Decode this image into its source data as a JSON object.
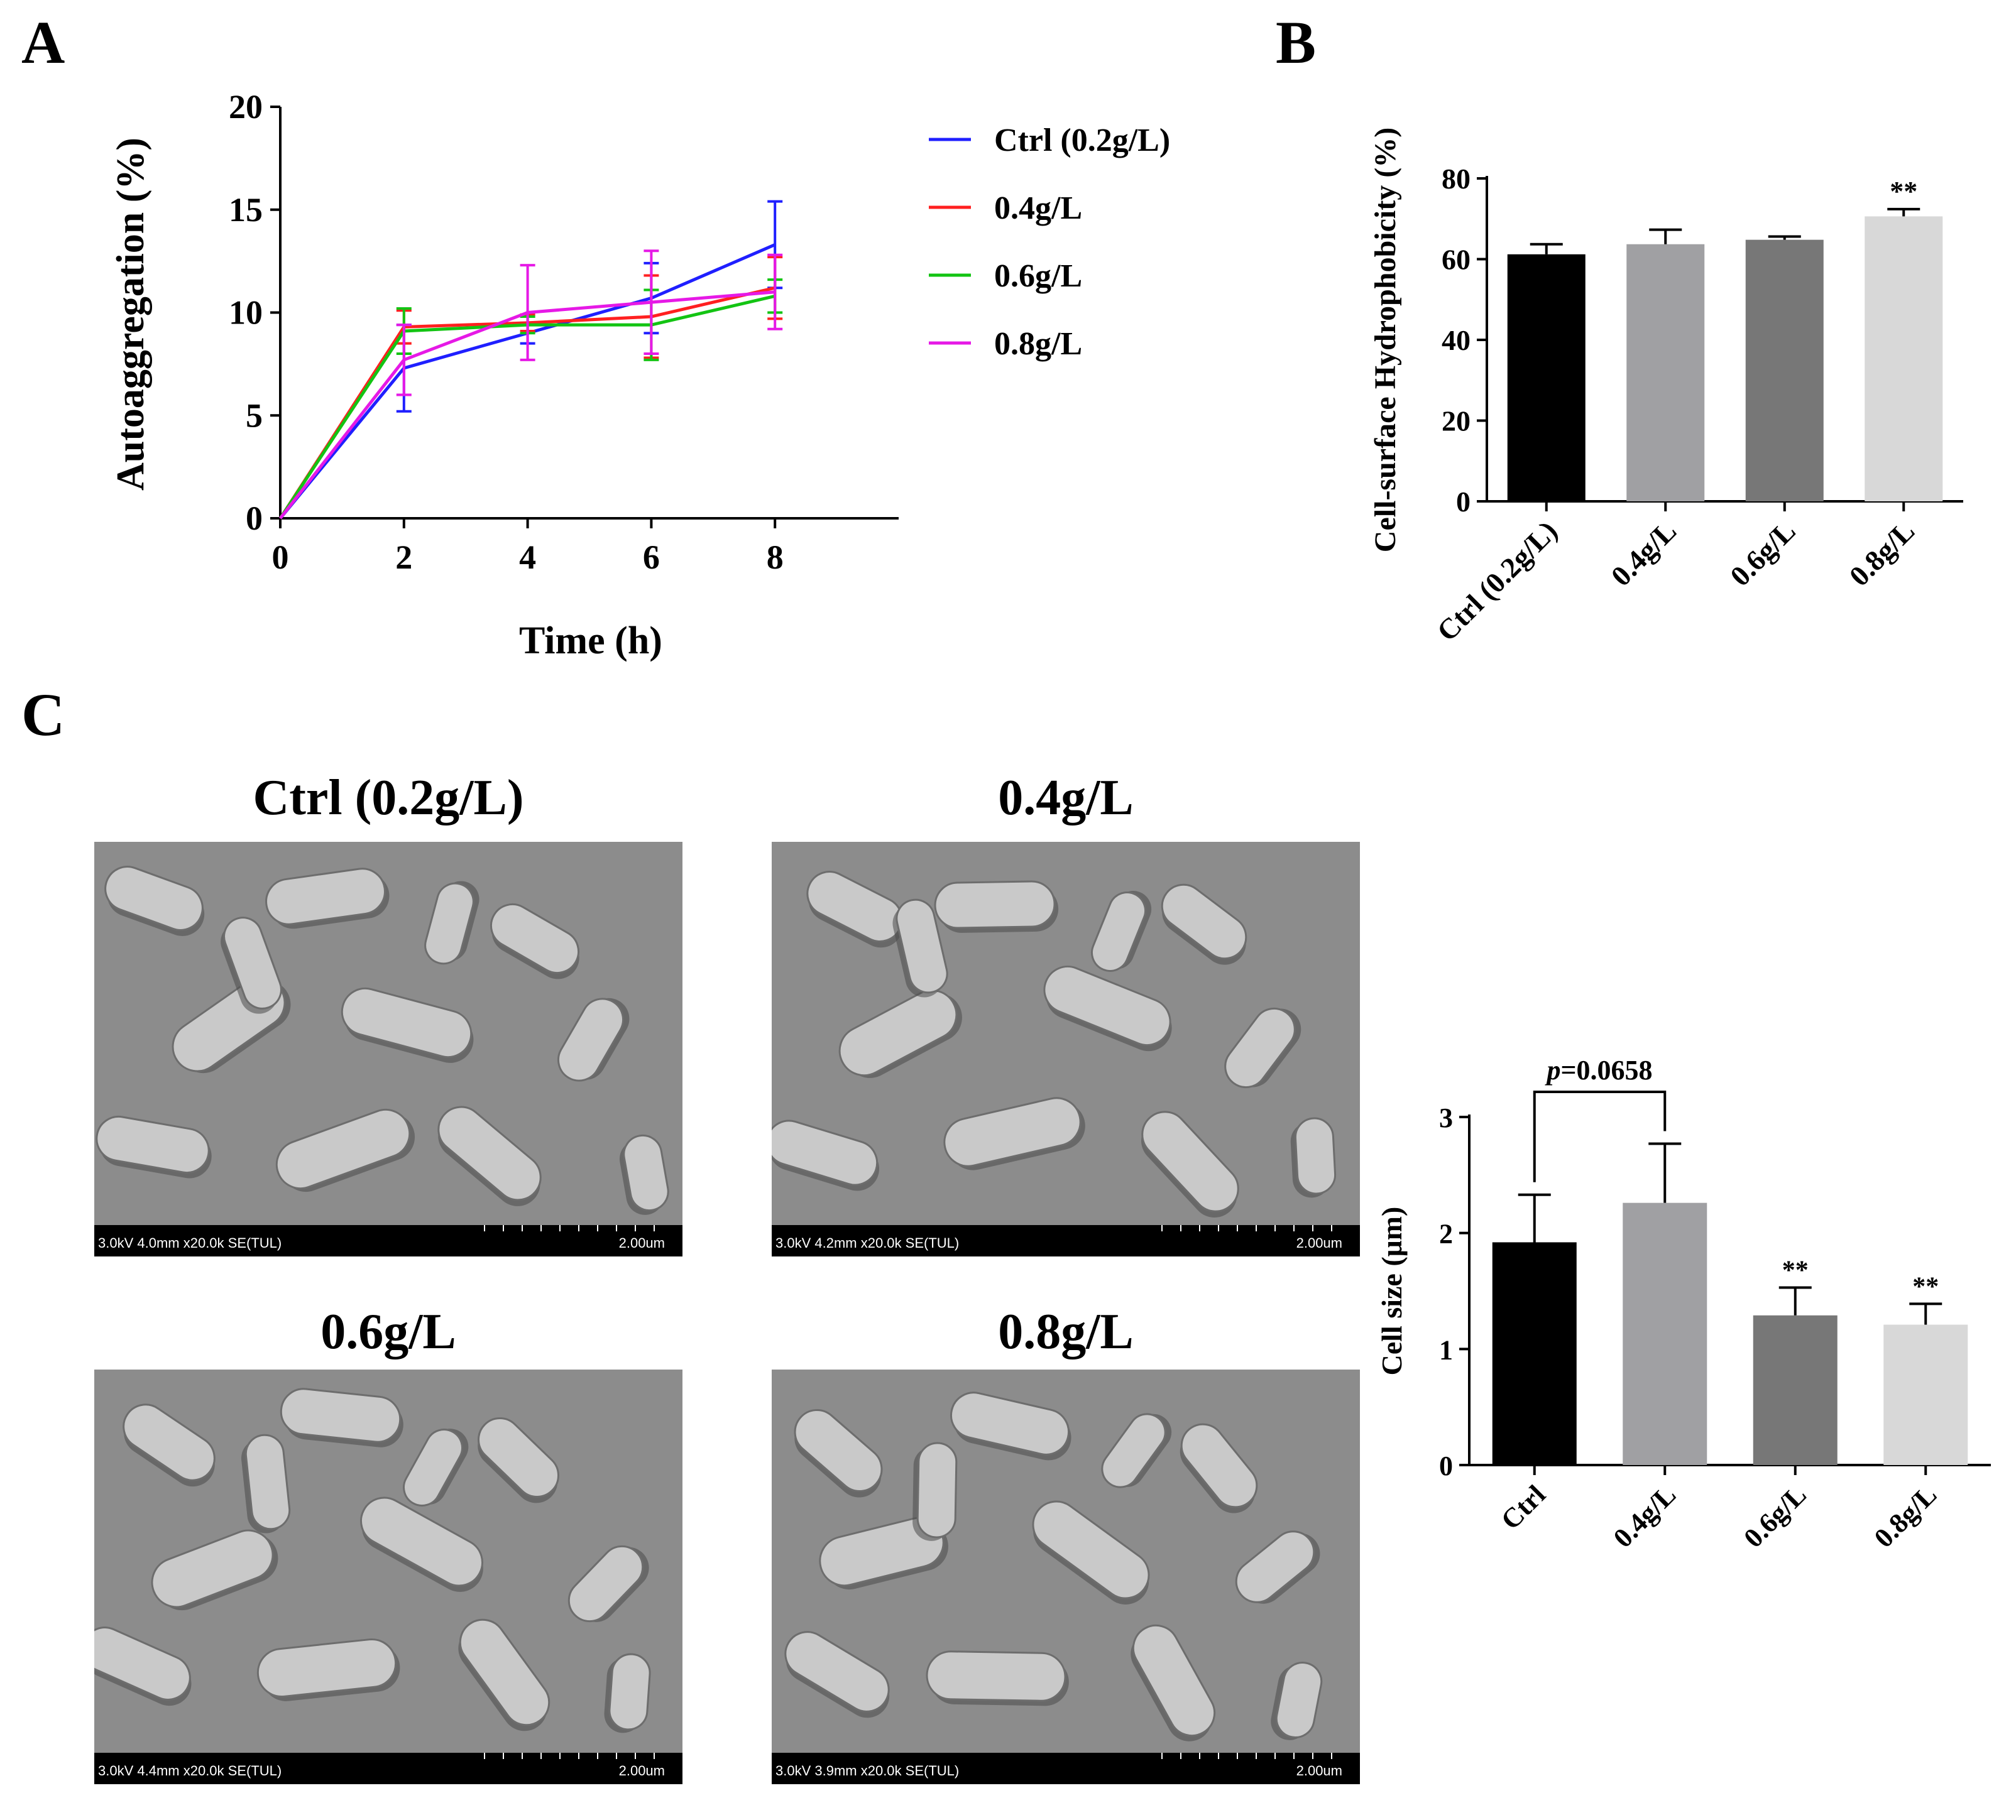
{
  "panels": {
    "a": "A",
    "b": "B",
    "c": "C"
  },
  "chart_data": [
    {
      "type": "line",
      "panel": "A",
      "title": "",
      "xlabel": "Time (h)",
      "ylabel": "Autoaggregation (%)",
      "x": [
        0,
        2,
        4,
        6,
        8
      ],
      "xticks": [
        "0",
        "2",
        "4",
        "6",
        "8"
      ],
      "yticks": [
        "0",
        "5",
        "10",
        "15",
        "20"
      ],
      "xlim": [
        0,
        10
      ],
      "ylim": [
        0,
        20
      ],
      "legend_position": "right",
      "series": [
        {
          "name": "Ctrl (0.2g/L)",
          "color": "#1f1fff",
          "values": [
            0,
            7.3,
            9.0,
            10.7,
            13.3
          ],
          "errors": [
            0,
            2.1,
            0.5,
            1.7,
            2.1
          ]
        },
        {
          "name": "0.4g/L",
          "color": "#ff2020",
          "values": [
            0,
            9.3,
            9.5,
            9.8,
            11.2
          ],
          "errors": [
            0,
            0.8,
            0.4,
            2.0,
            1.5
          ]
        },
        {
          "name": "0.6g/L",
          "color": "#13c413",
          "values": [
            0,
            9.1,
            9.4,
            9.4,
            10.8
          ],
          "errors": [
            0,
            1.1,
            0.4,
            1.7,
            0.8
          ]
        },
        {
          "name": "0.8g/L",
          "color": "#e619e6",
          "values": [
            0,
            7.7,
            10.0,
            10.5,
            11.0
          ],
          "errors": [
            0,
            1.7,
            2.3,
            2.5,
            1.8
          ]
        }
      ]
    },
    {
      "type": "bar",
      "panel": "B",
      "title": "",
      "xlabel": "",
      "ylabel": "Cell-surface Hydrophobicity (%)",
      "categories": [
        "Ctrl (0.2g/L)",
        "0.4g/L",
        "0.6g/L",
        "0.8g/L"
      ],
      "values": [
        61.2,
        63.7,
        64.8,
        70.6
      ],
      "errors": [
        2.5,
        3.6,
        0.8,
        1.8
      ],
      "colors": [
        "#000000",
        "#a0a0a3",
        "#777777",
        "#d8d8d8"
      ],
      "annotations": [
        "",
        "",
        "",
        "**"
      ],
      "yticks": [
        "0",
        "20",
        "40",
        "60",
        "80"
      ],
      "ylim": [
        0,
        80
      ]
    },
    {
      "type": "bar",
      "panel": "C",
      "title": "",
      "xlabel": "",
      "ylabel": "Cell size (μm)",
      "categories": [
        "Ctrl",
        "0.4g/L",
        "0.6g/L",
        "0.8g/L"
      ],
      "values": [
        1.92,
        2.26,
        1.29,
        1.21
      ],
      "errors": [
        0.41,
        0.51,
        0.24,
        0.18
      ],
      "colors": [
        "#000000",
        "#a0a0a3",
        "#777777",
        "#d8d8d8"
      ],
      "annotations": [
        "",
        "",
        "**",
        "**"
      ],
      "bracket": {
        "from": 0,
        "to": 1,
        "label_italic": "p",
        "label_rest": "=0.0658"
      },
      "yticks": [
        "0",
        "1",
        "2",
        "3"
      ],
      "ylim": [
        0,
        3
      ]
    }
  ],
  "sem_images": [
    {
      "title": "Ctrl (0.2g/L)",
      "info": "3.0kV 4.0mm x20.0k SE(TUL)",
      "scale": "2.00um"
    },
    {
      "title": "0.4g/L",
      "info": "3.0kV 4.2mm x20.0k SE(TUL)",
      "scale": "2.00um"
    },
    {
      "title": "0.6g/L",
      "info": "3.0kV 4.4mm x20.0k SE(TUL)",
      "scale": "2.00um"
    },
    {
      "title": "0.8g/L",
      "info": "3.0kV 3.9mm x20.0k SE(TUL)",
      "scale": "2.00um"
    }
  ]
}
